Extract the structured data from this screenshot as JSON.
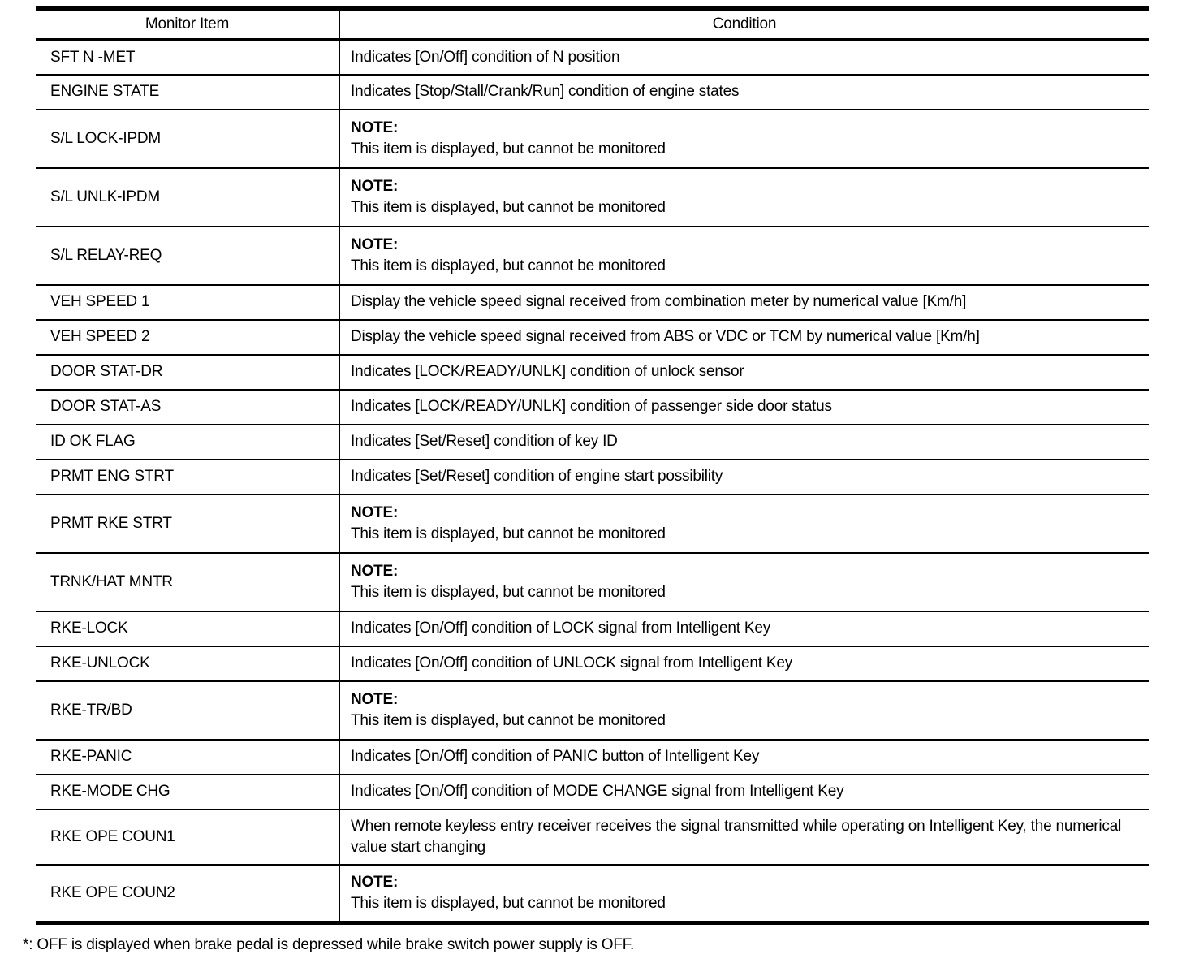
{
  "table": {
    "col_headers": [
      "Monitor Item",
      "Condition"
    ],
    "rows": [
      {
        "item": "SFT N -MET",
        "condition": "Indicates [On/Off] condition of N position"
      },
      {
        "item": "ENGINE STATE",
        "condition": "Indicates [Stop/Stall/Crank/Run] condition of engine states"
      },
      {
        "item": "S/L LOCK-IPDM",
        "note": "NOTE:",
        "condition": "This item is displayed, but cannot be monitored"
      },
      {
        "item": "S/L UNLK-IPDM",
        "note": "NOTE:",
        "condition": "This item is displayed, but cannot be monitored"
      },
      {
        "item": "S/L RELAY-REQ",
        "note": "NOTE:",
        "condition": "This item is displayed, but cannot be monitored"
      },
      {
        "item": "VEH SPEED 1",
        "condition": "Display the vehicle speed signal received from combination meter by numerical value [Km/h]"
      },
      {
        "item": "VEH SPEED 2",
        "condition": "Display the vehicle speed signal received from ABS or VDC or TCM by numerical value [Km/h]"
      },
      {
        "item": "DOOR STAT-DR",
        "condition": "Indicates [LOCK/READY/UNLK] condition of unlock sensor"
      },
      {
        "item": "DOOR STAT-AS",
        "condition": "Indicates [LOCK/READY/UNLK] condition of passenger side door status"
      },
      {
        "item": "ID OK FLAG",
        "condition": "Indicates [Set/Reset] condition of key ID"
      },
      {
        "item": "PRMT ENG STRT",
        "condition": "Indicates [Set/Reset] condition of engine start possibility"
      },
      {
        "item": "PRMT RKE STRT",
        "note": "NOTE:",
        "condition": "This item is displayed, but cannot be monitored"
      },
      {
        "item": "TRNK/HAT MNTR",
        "note": "NOTE:",
        "condition": "This item is displayed, but cannot be monitored"
      },
      {
        "item": "RKE-LOCK",
        "condition": "Indicates [On/Off] condition of LOCK signal from Intelligent Key"
      },
      {
        "item": "RKE-UNLOCK",
        "condition": "Indicates [On/Off] condition of UNLOCK signal from Intelligent Key"
      },
      {
        "item": "RKE-TR/BD",
        "note": "NOTE:",
        "condition": "This item is displayed, but cannot be monitored"
      },
      {
        "item": "RKE-PANIC",
        "condition": "Indicates [On/Off] condition of PANIC button of Intelligent Key"
      },
      {
        "item": "RKE-MODE CHG",
        "condition": "Indicates [On/Off] condition of MODE CHANGE signal from Intelligent Key"
      },
      {
        "item": "RKE OPE COUN1",
        "condition": "When remote keyless entry receiver receives the signal transmitted while operating on Intelligent Key, the numerical value start changing"
      },
      {
        "item": "RKE OPE COUN2",
        "note": "NOTE:",
        "condition": "This item is displayed, but cannot be monitored"
      }
    ],
    "footnote": "*: OFF is displayed when brake pedal is depressed while brake switch power supply is OFF."
  },
  "colors": {
    "line": "#000000",
    "text": "#000000",
    "background": "#ffffff"
  }
}
